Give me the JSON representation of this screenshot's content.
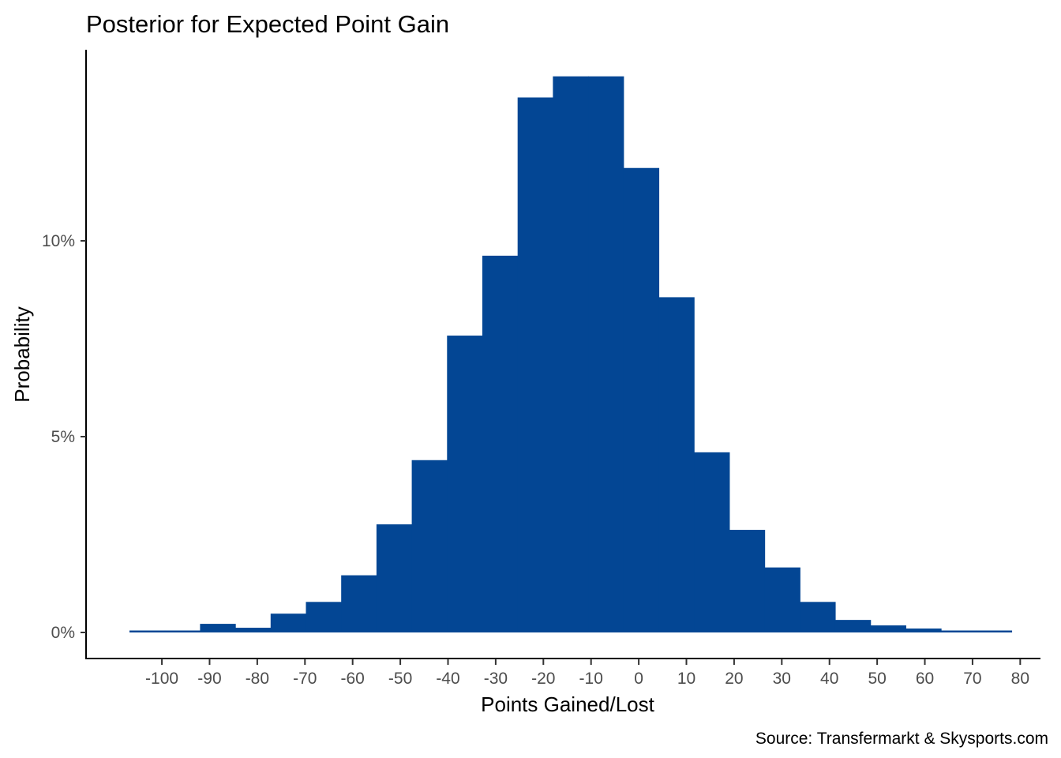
{
  "chart_data": {
    "type": "bar",
    "title": "Posterior for Expected Point Gain",
    "xlabel": "Points Gained/Lost",
    "ylabel": "Probability",
    "caption": "Source: Transfermarkt & Skysports.com",
    "bar_color": "#034694",
    "xlim": [
      -106.8,
      76.8
    ],
    "ylim": [
      0,
      0.14
    ],
    "bin_width": 7.4,
    "bin_start": -106.8,
    "values": [
      0.0005,
      0.0005,
      0.0022,
      0.0012,
      0.0048,
      0.0078,
      0.0146,
      0.0276,
      0.044,
      0.0758,
      0.0962,
      0.1366,
      0.142,
      0.142,
      0.1186,
      0.0856,
      0.046,
      0.0262,
      0.0166,
      0.0078,
      0.0032,
      0.0018,
      0.001,
      0.0005,
      0.0005
    ],
    "x_ticks": [
      -100,
      -90,
      -80,
      -70,
      -60,
      -50,
      -40,
      -30,
      -20,
      -10,
      0,
      10,
      20,
      30,
      40,
      50,
      60,
      70,
      80
    ],
    "x_tick_labels": [
      "-100",
      "-90",
      "-80",
      "-70",
      "-60",
      "-50",
      "-40",
      "-30",
      "-20",
      "-10",
      "0",
      "10",
      "20",
      "30",
      "40",
      "50",
      "60",
      "70",
      "80"
    ],
    "y_ticks": [
      0,
      0.05,
      0.1
    ],
    "y_tick_labels": [
      "0%",
      "5%",
      "10%"
    ],
    "grid": false,
    "legend": "none"
  }
}
